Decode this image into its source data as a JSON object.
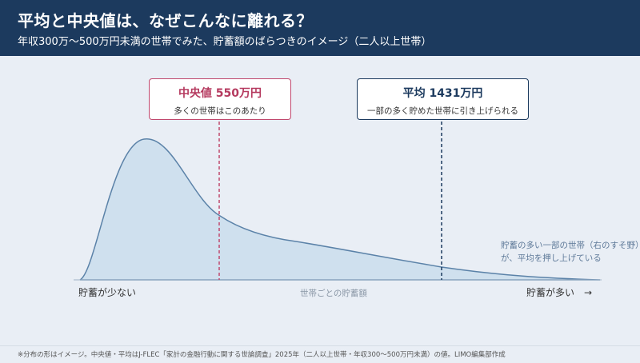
{
  "header": {
    "title": "平均と中央値は、なぜこんなに離れる？",
    "subtitle": "年収300万〜500万円未満の世帯でみた、貯蓄額のばらつきのイメージ（二人以上世帯）"
  },
  "median": {
    "title": "中央値 550万円",
    "description": "多くの世帯はこのあたり",
    "value": 550,
    "color": "#c0486d"
  },
  "mean": {
    "title": "平均 1431万円",
    "description": "一部の多く貯めた世帯に引き上げられる",
    "value": 1431,
    "color": "#1c3a5e"
  },
  "axis": {
    "low_label": "貯蓄が少ない",
    "high_label": "貯蓄が多い　→",
    "center_label": "世帯ごとの貯蓄額"
  },
  "tail_note": {
    "line1": "貯蓄の多い一部の世帯（右のすそ野）",
    "line2": "が、平均を押し上げている"
  },
  "footnote": "※分布の形はイメージ。中央値・平均はJ-FLEC「家計の金融行動に関する世論調査」2025年（二人以上世帯・年収300〜500万円未満）の値。LIMO編集部作成",
  "colors": {
    "header_bg": "#1c3a5e",
    "curve_fill": "#cfe0ee",
    "curve_stroke": "#5b82a8"
  }
}
